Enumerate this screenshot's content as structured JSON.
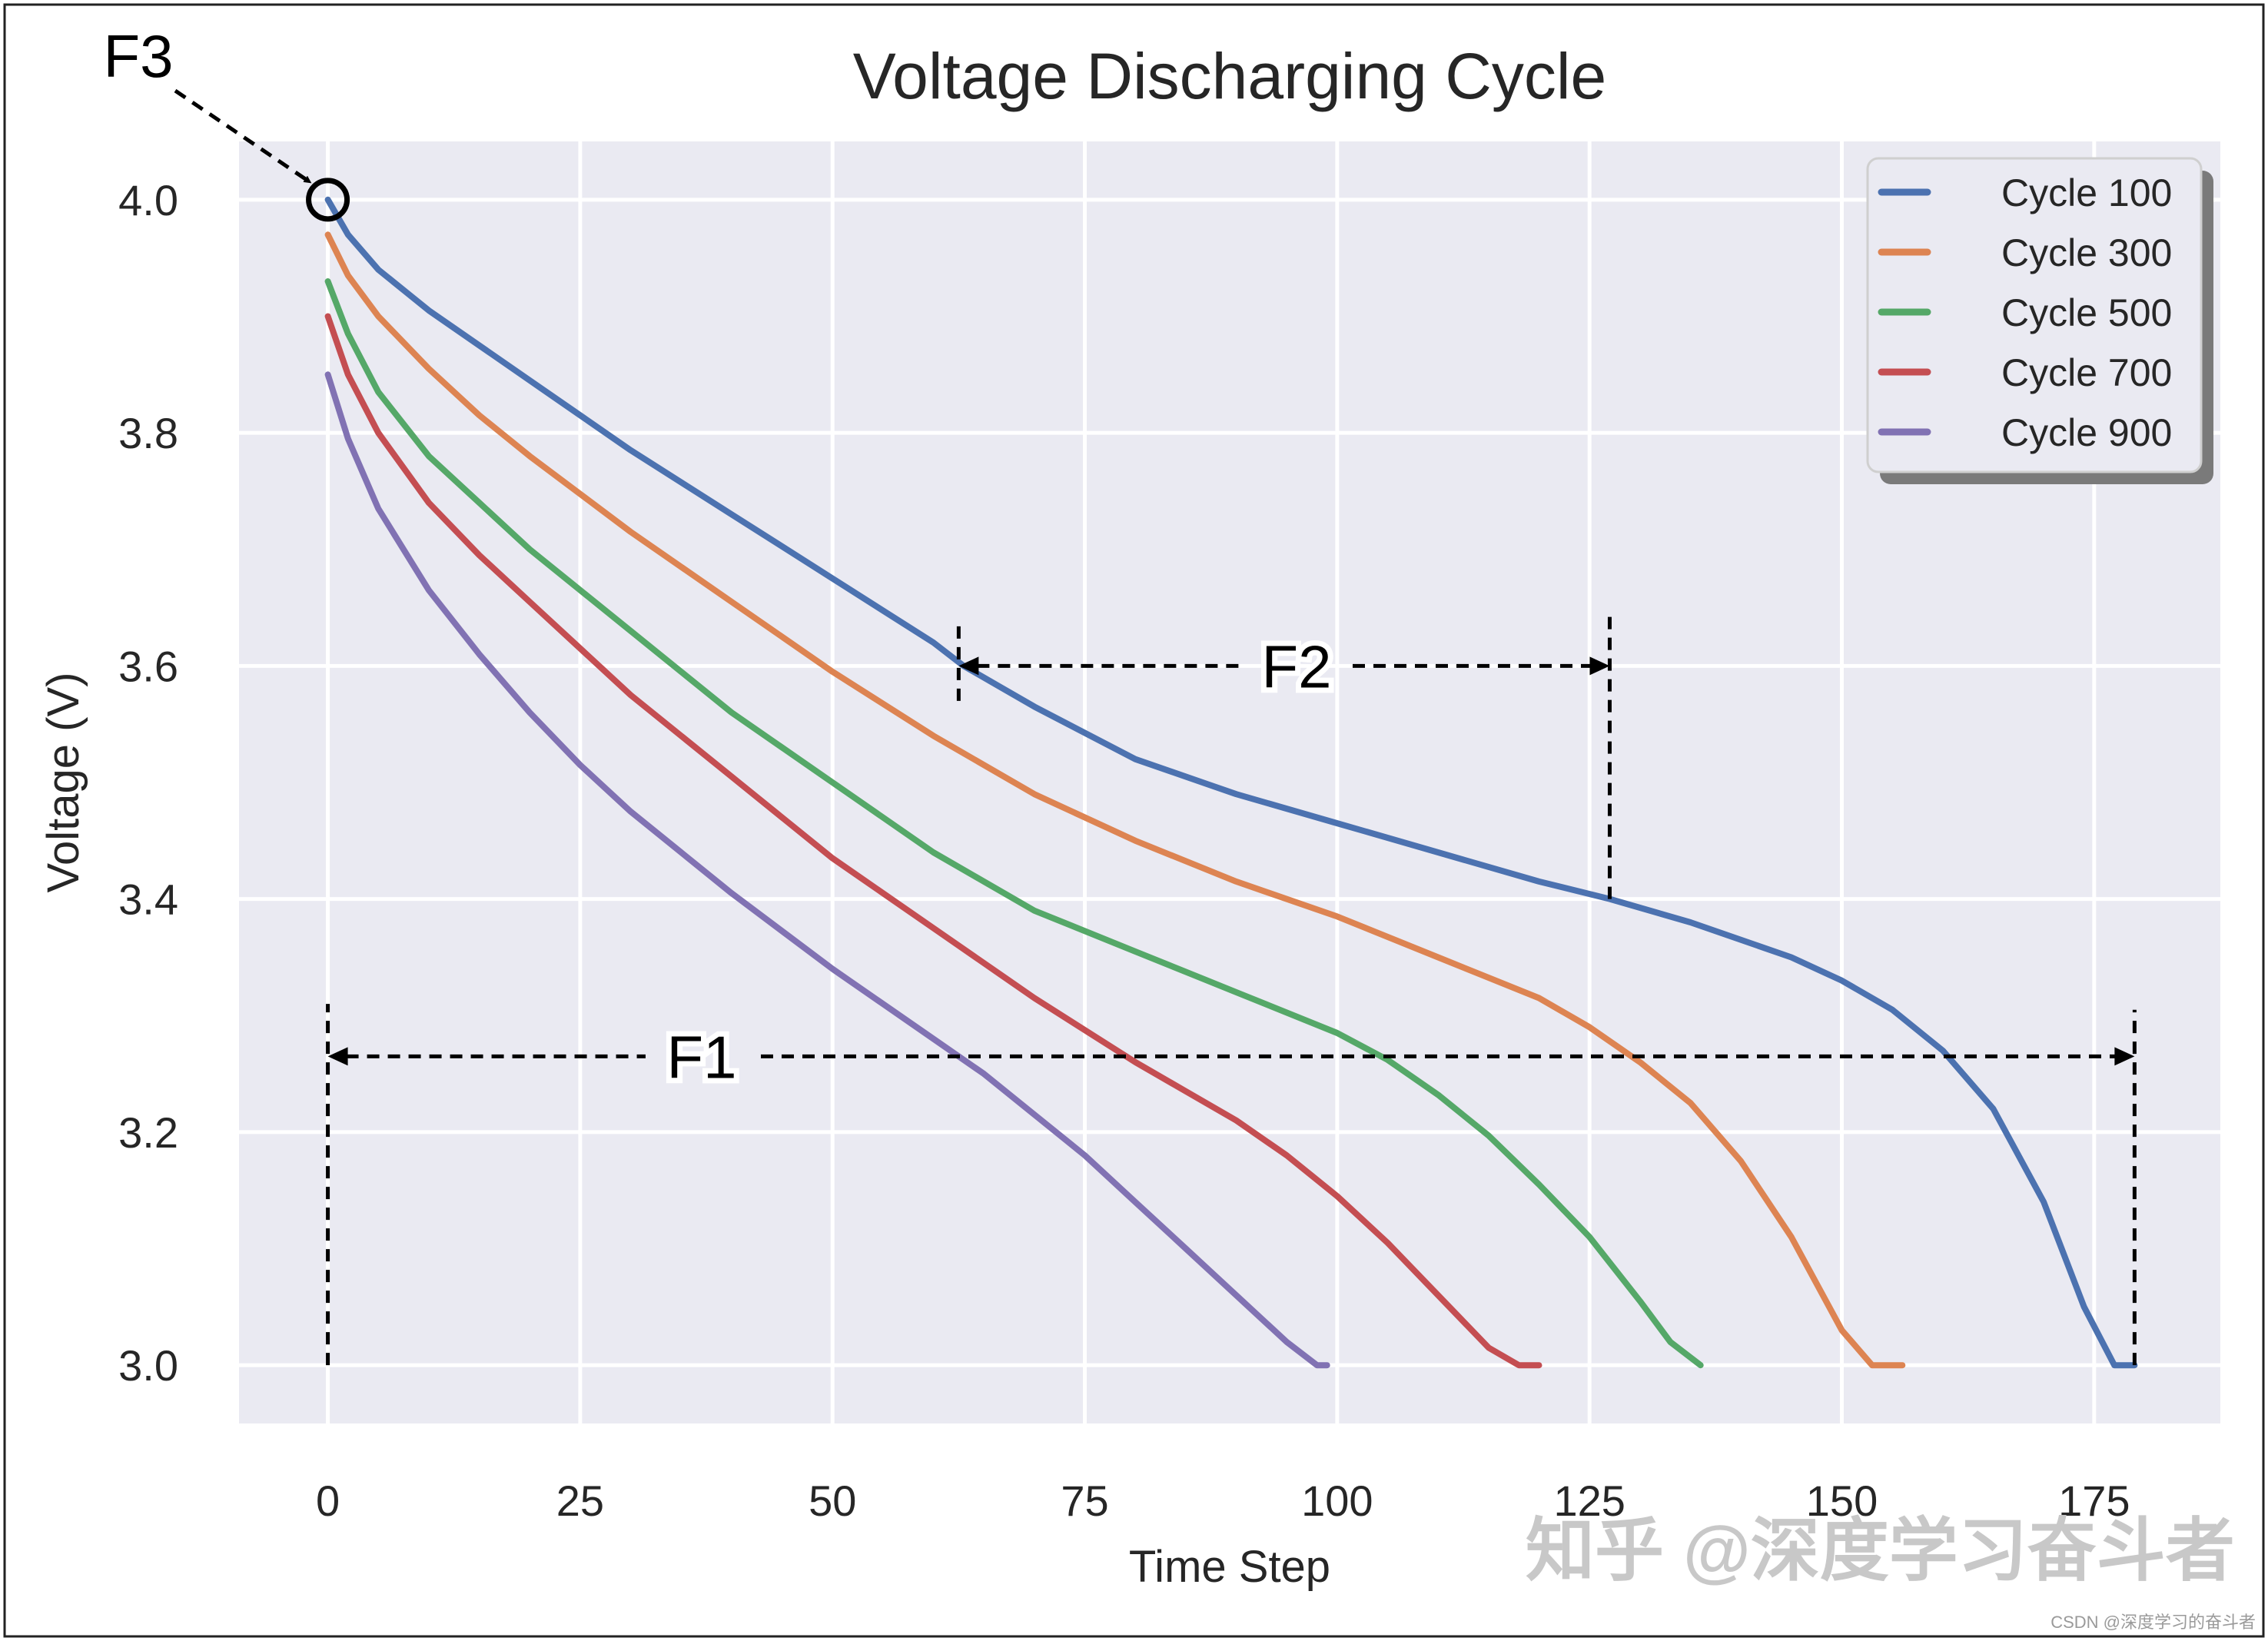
{
  "chart_data": {
    "type": "line",
    "title": "Voltage Discharging Cycle",
    "xlabel": "Time Step",
    "ylabel": "Voltage (V)",
    "xlim": [
      -8.8,
      187.5
    ],
    "ylim": [
      2.95,
      4.05
    ],
    "xticks": [
      0,
      25,
      50,
      75,
      100,
      125,
      150,
      175
    ],
    "xtick_labels": [
      "0",
      "25",
      "50",
      "75",
      "100",
      "125",
      "150",
      "175"
    ],
    "yticks": [
      3.0,
      3.2,
      3.4,
      3.6,
      3.8,
      4.0
    ],
    "ytick_labels": [
      "3.0",
      "3.2",
      "3.4",
      "3.6",
      "3.8",
      "4.0"
    ],
    "grid": true,
    "background": "#eaeaf2",
    "legend_position": "top-right",
    "series": [
      {
        "name": "Cycle 100",
        "color": "#4c72b0",
        "x": [
          0,
          2,
          5,
          10,
          15,
          20,
          25,
          30,
          40,
          50,
          60,
          63,
          70,
          80,
          90,
          100,
          110,
          120,
          127,
          135,
          145,
          150,
          155,
          160,
          165,
          170,
          174,
          177,
          178,
          179
        ],
        "y": [
          4.0,
          3.97,
          3.94,
          3.905,
          3.875,
          3.845,
          3.815,
          3.785,
          3.73,
          3.675,
          3.62,
          3.6,
          3.565,
          3.52,
          3.49,
          3.465,
          3.44,
          3.415,
          3.4,
          3.38,
          3.35,
          3.33,
          3.305,
          3.27,
          3.22,
          3.14,
          3.05,
          3.0,
          3.0,
          3.0
        ]
      },
      {
        "name": "Cycle 300",
        "color": "#dd8452",
        "x": [
          0,
          2,
          5,
          10,
          15,
          20,
          30,
          40,
          50,
          60,
          70,
          80,
          90,
          100,
          110,
          120,
          125,
          130,
          135,
          140,
          145,
          150,
          153,
          155,
          156
        ],
        "y": [
          3.97,
          3.935,
          3.9,
          3.855,
          3.815,
          3.78,
          3.715,
          3.655,
          3.595,
          3.54,
          3.49,
          3.45,
          3.415,
          3.385,
          3.35,
          3.315,
          3.29,
          3.26,
          3.225,
          3.175,
          3.11,
          3.03,
          3.0,
          3.0,
          3.0
        ]
      },
      {
        "name": "Cycle 500",
        "color": "#55a868",
        "x": [
          0,
          2,
          5,
          10,
          15,
          20,
          30,
          40,
          50,
          60,
          70,
          80,
          90,
          100,
          105,
          110,
          115,
          120,
          125,
          130,
          133,
          136
        ],
        "y": [
          3.93,
          3.885,
          3.835,
          3.78,
          3.74,
          3.7,
          3.63,
          3.56,
          3.5,
          3.44,
          3.39,
          3.355,
          3.32,
          3.285,
          3.262,
          3.232,
          3.197,
          3.155,
          3.11,
          3.055,
          3.02,
          3.0
        ]
      },
      {
        "name": "Cycle 700",
        "color": "#c44e52",
        "x": [
          0,
          2,
          5,
          10,
          15,
          20,
          30,
          40,
          50,
          60,
          70,
          80,
          85,
          90,
          95,
          100,
          105,
          110,
          115,
          118,
          119,
          120
        ],
        "y": [
          3.9,
          3.85,
          3.8,
          3.74,
          3.695,
          3.655,
          3.575,
          3.505,
          3.435,
          3.375,
          3.315,
          3.26,
          3.235,
          3.21,
          3.18,
          3.145,
          3.105,
          3.06,
          3.015,
          3.0,
          3.0,
          3.0
        ]
      },
      {
        "name": "Cycle 900",
        "color": "#8172b3",
        "x": [
          0,
          2,
          5,
          10,
          15,
          20,
          25,
          30,
          40,
          50,
          60,
          65,
          70,
          75,
          80,
          85,
          90,
          95,
          98,
          99
        ],
        "y": [
          3.85,
          3.795,
          3.735,
          3.665,
          3.61,
          3.56,
          3.515,
          3.475,
          3.405,
          3.34,
          3.28,
          3.25,
          3.215,
          3.18,
          3.14,
          3.1,
          3.06,
          3.02,
          3.0,
          3.0
        ]
      }
    ],
    "annotations": [
      {
        "label": "F1",
        "x_start": 0,
        "x_end": 179,
        "y": 3.265
      },
      {
        "label": "F2",
        "x_start": 62.5,
        "x_end": 127,
        "y": 3.6,
        "v_start_range": [
          3.57,
          3.64
        ],
        "v_end_range": [
          3.4,
          3.645
        ]
      },
      {
        "label": "F3",
        "marker_x": 0,
        "marker_y": 4.0
      }
    ]
  },
  "watermark": {
    "main": "知乎 @深度学习奋斗者",
    "footer": "CSDN @深度学习的奋斗者"
  }
}
